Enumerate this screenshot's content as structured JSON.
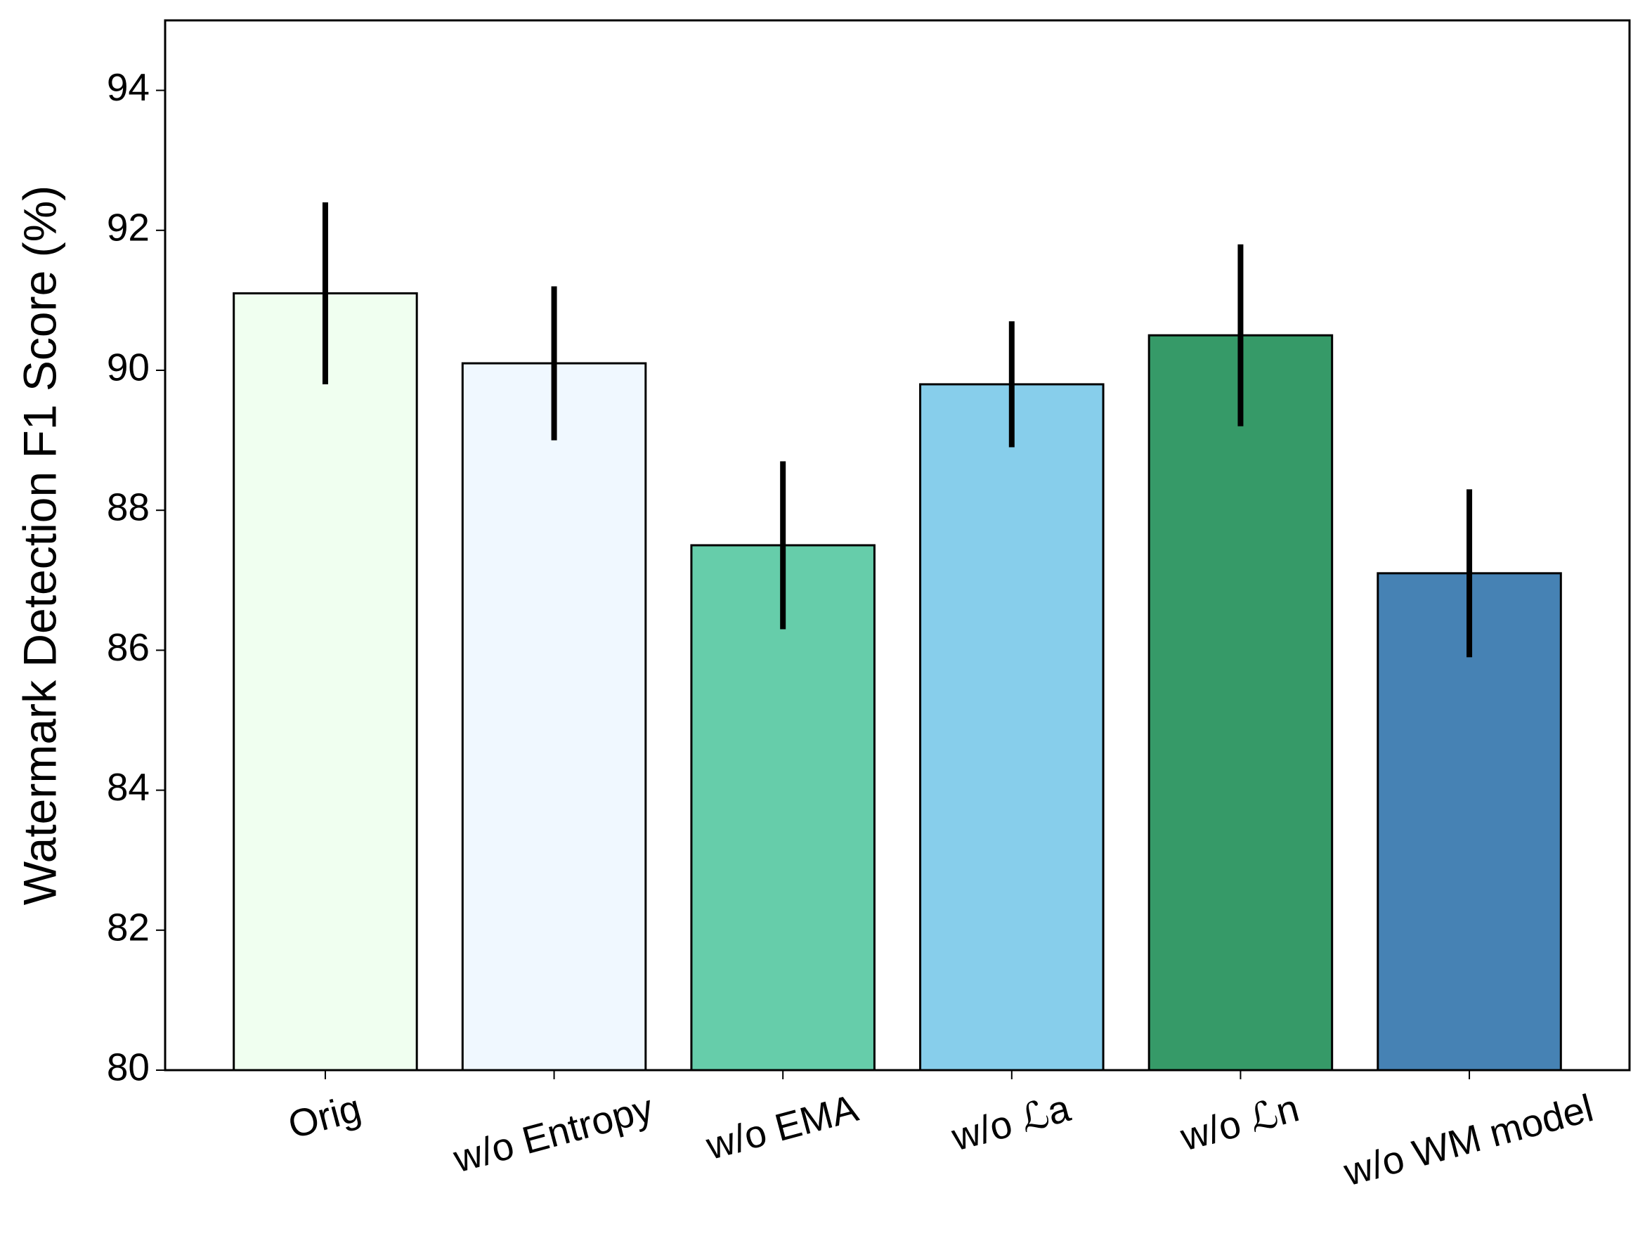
{
  "chart_data": {
    "type": "bar",
    "y_label": "Watermark Detection F1 Score (%)",
    "categories": [
      "Orig",
      "w/o Entropy",
      "w/o EMA",
      "w/o ℒa",
      "w/o ℒn",
      "w/o WM model"
    ],
    "values": [
      91.1,
      90.1,
      87.5,
      89.8,
      90.5,
      87.1
    ],
    "errors": [
      1.3,
      1.1,
      1.2,
      0.9,
      1.3,
      1.2
    ],
    "colors": [
      "#f0fff0",
      "#f0f8ff",
      "#66cdaa",
      "#87ceeb",
      "#369a68",
      "#4682b4"
    ],
    "ylim": [
      80,
      95
    ],
    "yticks": [
      80,
      82,
      84,
      86,
      88,
      90,
      92,
      94
    ]
  }
}
